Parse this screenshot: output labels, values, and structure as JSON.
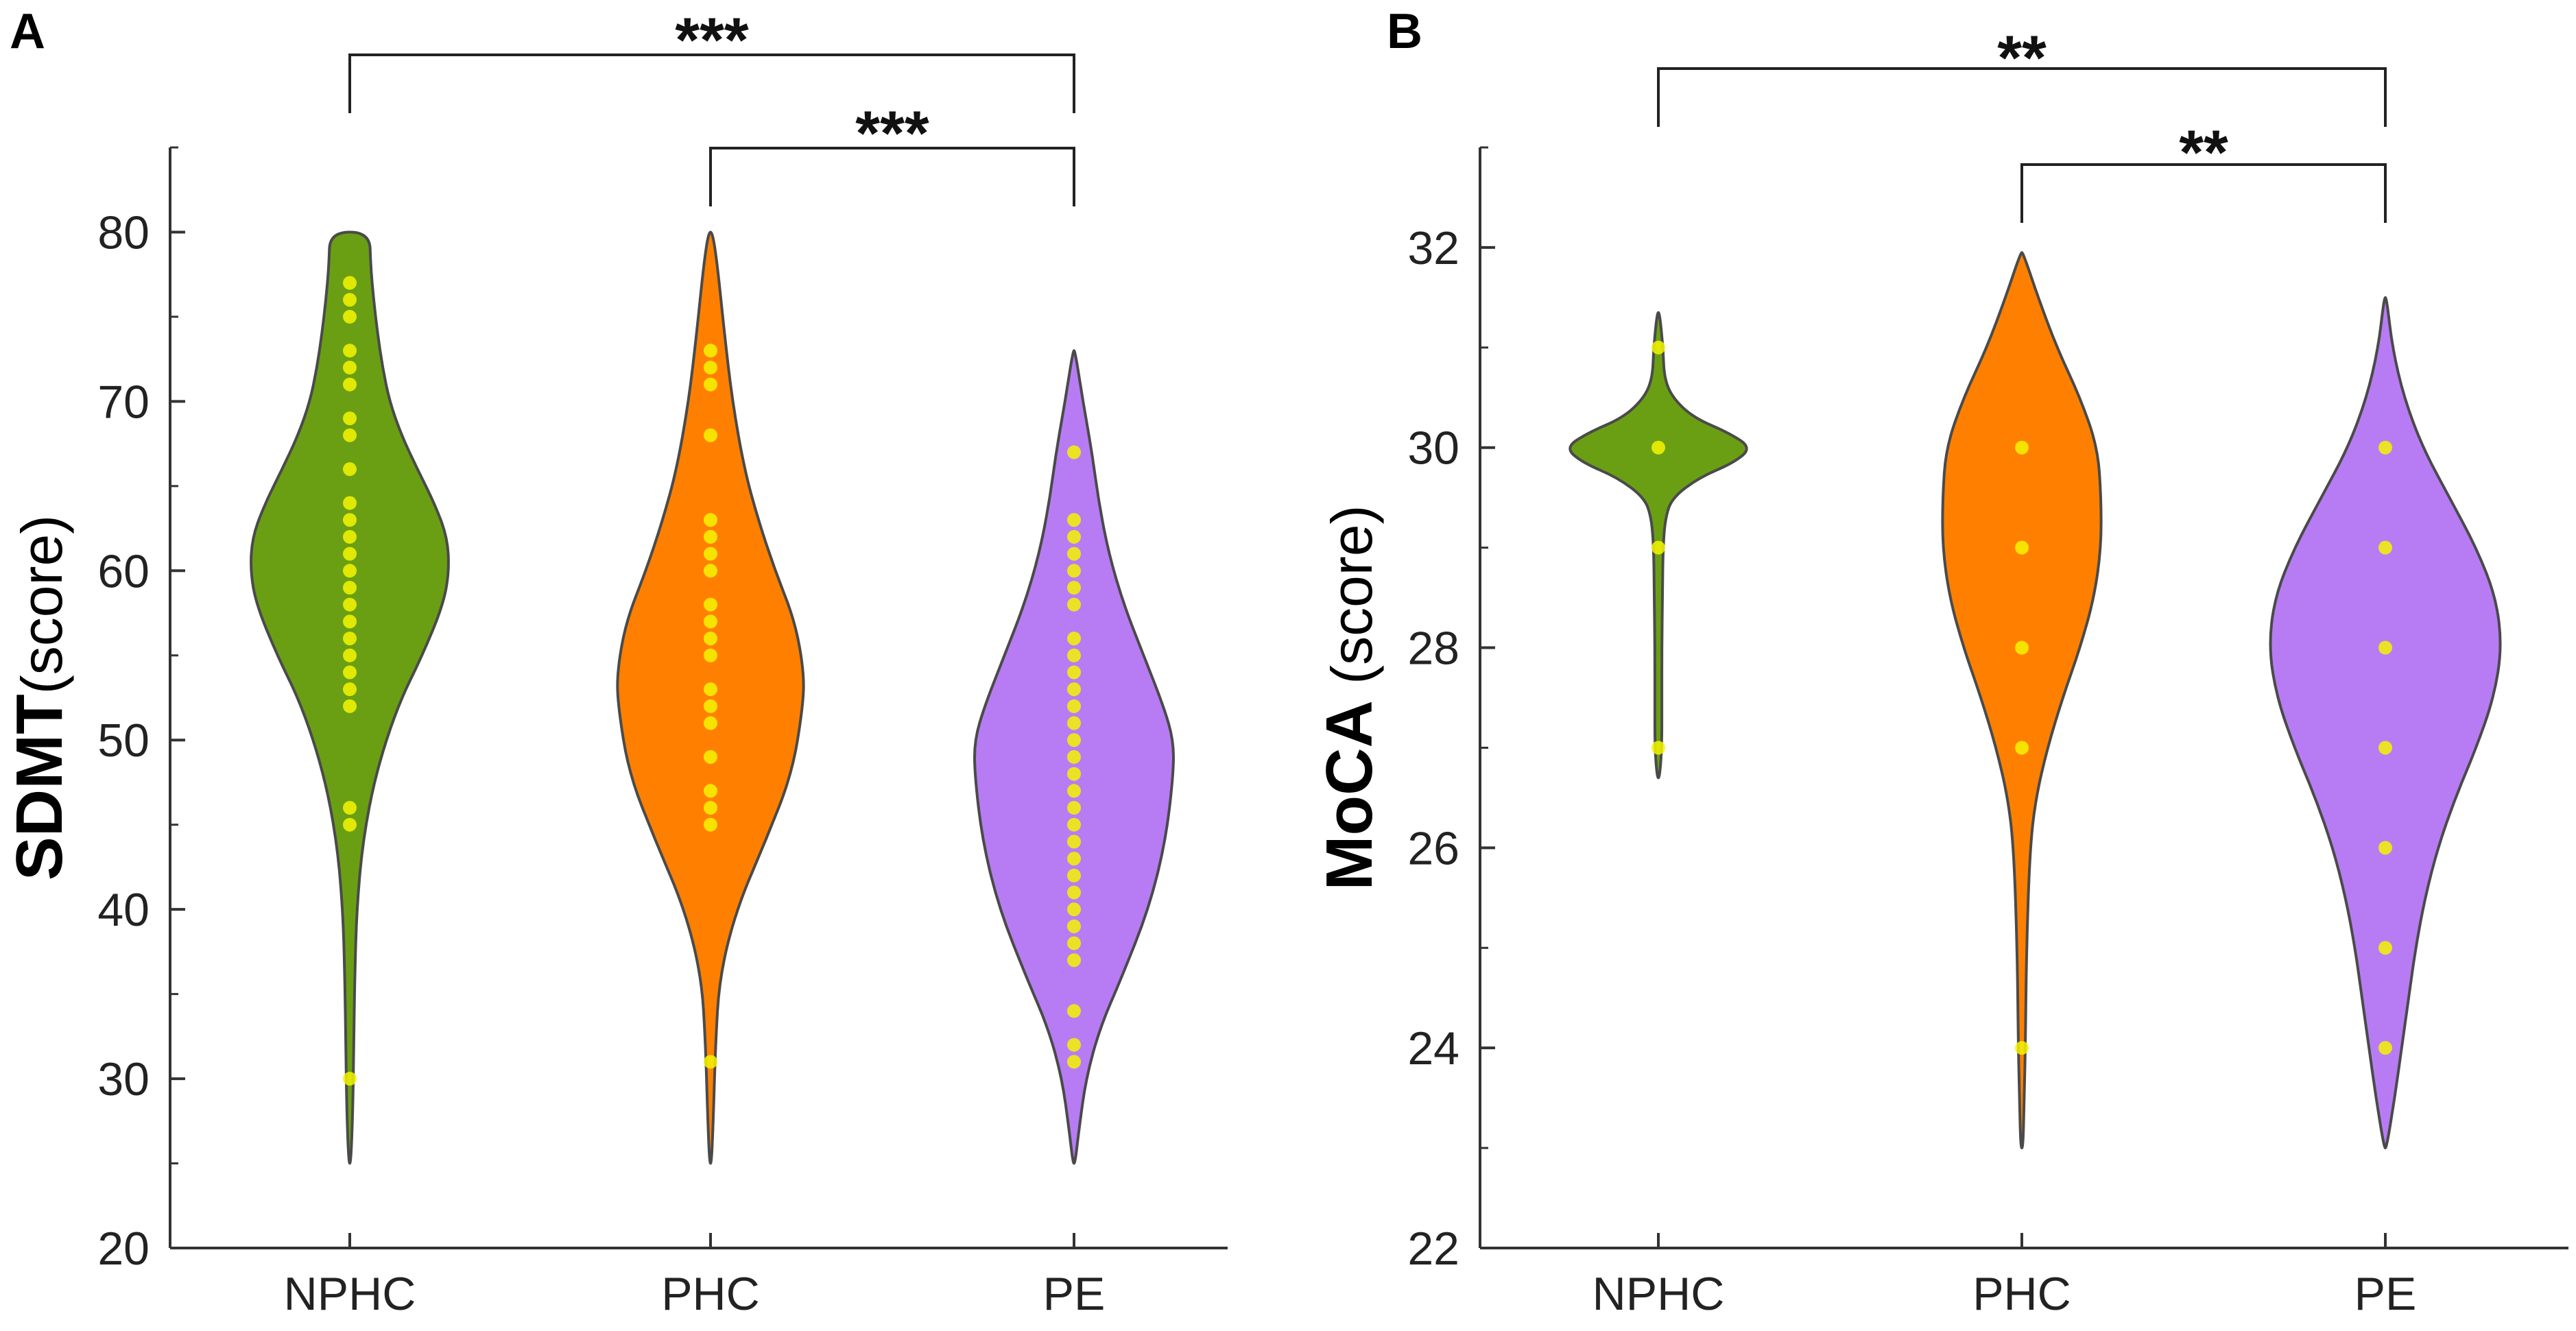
{
  "chart_data": [
    {
      "type": "violin",
      "panel_label": "A",
      "ylabel_bold": "SDMT",
      "ylabel_normal": "(score)",
      "ylim": [
        20,
        85
      ],
      "yticks": [
        20,
        30,
        40,
        50,
        60,
        70,
        80
      ],
      "categories": [
        "NPHC",
        "PHC",
        "PE"
      ],
      "colors": [
        "#6a9f14",
        "#ff8000",
        "#b77cf3"
      ],
      "violins": [
        {
          "group": "NPHC",
          "profile": [
            [
              25,
              0.01
            ],
            [
              28,
              0.03
            ],
            [
              32,
              0.04
            ],
            [
              36,
              0.05
            ],
            [
              40,
              0.07
            ],
            [
              44,
              0.13
            ],
            [
              48,
              0.26
            ],
            [
              52,
              0.48
            ],
            [
              55,
              0.73
            ],
            [
              58,
              0.94
            ],
            [
              60,
              1.0
            ],
            [
              62,
              0.98
            ],
            [
              64,
              0.85
            ],
            [
              66,
              0.68
            ],
            [
              68,
              0.52
            ],
            [
              70,
              0.4
            ],
            [
              72,
              0.33
            ],
            [
              74,
              0.28
            ],
            [
              76,
              0.24
            ],
            [
              78,
              0.21
            ],
            [
              80,
              0.2
            ]
          ]
        },
        {
          "group": "PHC",
          "profile": [
            [
              25,
              0.01
            ],
            [
              28,
              0.03
            ],
            [
              32,
              0.05
            ],
            [
              36,
              0.09
            ],
            [
              40,
              0.26
            ],
            [
              44,
              0.55
            ],
            [
              48,
              0.82
            ],
            [
              52,
              0.93
            ],
            [
              54,
              0.94
            ],
            [
              57,
              0.85
            ],
            [
              60,
              0.65
            ],
            [
              63,
              0.48
            ],
            [
              66,
              0.34
            ],
            [
              70,
              0.22
            ],
            [
              74,
              0.14
            ],
            [
              78,
              0.07
            ],
            [
              80,
              0.02
            ]
          ]
        },
        {
          "group": "PE",
          "profile": [
            [
              25,
              0.01
            ],
            [
              27,
              0.05
            ],
            [
              30,
              0.12
            ],
            [
              33,
              0.26
            ],
            [
              36,
              0.48
            ],
            [
              40,
              0.75
            ],
            [
              44,
              0.92
            ],
            [
              48,
              1.0
            ],
            [
              50,
              1.0
            ],
            [
              52,
              0.9
            ],
            [
              55,
              0.7
            ],
            [
              58,
              0.5
            ],
            [
              61,
              0.35
            ],
            [
              64,
              0.25
            ],
            [
              67,
              0.18
            ],
            [
              70,
              0.09
            ],
            [
              73,
              0.01
            ]
          ]
        }
      ],
      "points": [
        {
          "group": "NPHC",
          "values": [
            30,
            45,
            46,
            52,
            53,
            54,
            55,
            56,
            57,
            58,
            59,
            60,
            61,
            62,
            63,
            64,
            66,
            68,
            69,
            71,
            72,
            73,
            75,
            76,
            77
          ]
        },
        {
          "group": "PHC",
          "values": [
            31,
            45,
            46,
            47,
            49,
            51,
            52,
            53,
            55,
            56,
            57,
            58,
            60,
            61,
            62,
            63,
            68,
            71,
            72,
            73
          ]
        },
        {
          "group": "PE",
          "values": [
            31,
            32,
            34,
            37,
            38,
            39,
            40,
            41,
            42,
            43,
            44,
            45,
            46,
            47,
            48,
            49,
            50,
            51,
            52,
            53,
            54,
            55,
            56,
            58,
            59,
            60,
            61,
            62,
            63,
            67
          ]
        }
      ],
      "significance": [
        {
          "from": "NPHC",
          "to": "PE",
          "label": "***"
        },
        {
          "from": "PHC",
          "to": "PE",
          "label": "***"
        }
      ]
    },
    {
      "type": "violin",
      "panel_label": "B",
      "ylabel_bold": "MoCA",
      "ylabel_normal": " (score)",
      "ylim": [
        22,
        33
      ],
      "yticks": [
        22,
        24,
        26,
        28,
        30,
        32
      ],
      "categories": [
        "NPHC",
        "PHC",
        "PE"
      ],
      "colors": [
        "#6a9f14",
        "#ff8000",
        "#b77cf3"
      ],
      "violins": [
        {
          "group": "NPHC",
          "profile": [
            [
              26.7,
              0.01
            ],
            [
              27.0,
              0.03
            ],
            [
              27.5,
              0.03
            ],
            [
              28.0,
              0.03
            ],
            [
              28.5,
              0.035
            ],
            [
              29.0,
              0.04
            ],
            [
              29.3,
              0.06
            ],
            [
              29.5,
              0.12
            ],
            [
              29.7,
              0.35
            ],
            [
              29.85,
              0.65
            ],
            [
              30.0,
              0.8
            ],
            [
              30.15,
              0.6
            ],
            [
              30.3,
              0.3
            ],
            [
              30.5,
              0.12
            ],
            [
              30.7,
              0.05
            ],
            [
              31.0,
              0.04
            ],
            [
              31.35,
              0.01
            ]
          ]
        },
        {
          "group": "PHC",
          "profile": [
            [
              23.0,
              0.01
            ],
            [
              23.5,
              0.02
            ],
            [
              24.0,
              0.03
            ],
            [
              25.0,
              0.04
            ],
            [
              26.0,
              0.07
            ],
            [
              26.5,
              0.12
            ],
            [
              27.0,
              0.22
            ],
            [
              27.5,
              0.35
            ],
            [
              28.0,
              0.5
            ],
            [
              28.5,
              0.62
            ],
            [
              29.0,
              0.68
            ],
            [
              29.5,
              0.68
            ],
            [
              30.0,
              0.65
            ],
            [
              30.5,
              0.5
            ],
            [
              31.0,
              0.3
            ],
            [
              31.5,
              0.14
            ],
            [
              31.95,
              0.01
            ]
          ]
        },
        {
          "group": "PE",
          "profile": [
            [
              23.0,
              0.01
            ],
            [
              23.5,
              0.08
            ],
            [
              24.0,
              0.14
            ],
            [
              24.5,
              0.2
            ],
            [
              25.0,
              0.26
            ],
            [
              25.5,
              0.34
            ],
            [
              26.0,
              0.45
            ],
            [
              26.5,
              0.6
            ],
            [
              27.0,
              0.78
            ],
            [
              27.5,
              0.93
            ],
            [
              28.0,
              1.0
            ],
            [
              28.5,
              0.95
            ],
            [
              29.0,
              0.78
            ],
            [
              29.5,
              0.55
            ],
            [
              30.0,
              0.32
            ],
            [
              30.5,
              0.16
            ],
            [
              31.0,
              0.06
            ],
            [
              31.5,
              0.01
            ]
          ]
        }
      ],
      "points": [
        {
          "group": "NPHC",
          "values": [
            27,
            29,
            30,
            31
          ]
        },
        {
          "group": "PHC",
          "values": [
            24,
            27,
            28,
            29,
            30
          ]
        },
        {
          "group": "PE",
          "values": [
            24,
            25,
            26,
            27,
            28,
            29,
            30
          ]
        }
      ],
      "significance": [
        {
          "from": "NPHC",
          "to": "PE",
          "label": "**"
        },
        {
          "from": "PHC",
          "to": "PE",
          "label": "**"
        }
      ]
    }
  ]
}
